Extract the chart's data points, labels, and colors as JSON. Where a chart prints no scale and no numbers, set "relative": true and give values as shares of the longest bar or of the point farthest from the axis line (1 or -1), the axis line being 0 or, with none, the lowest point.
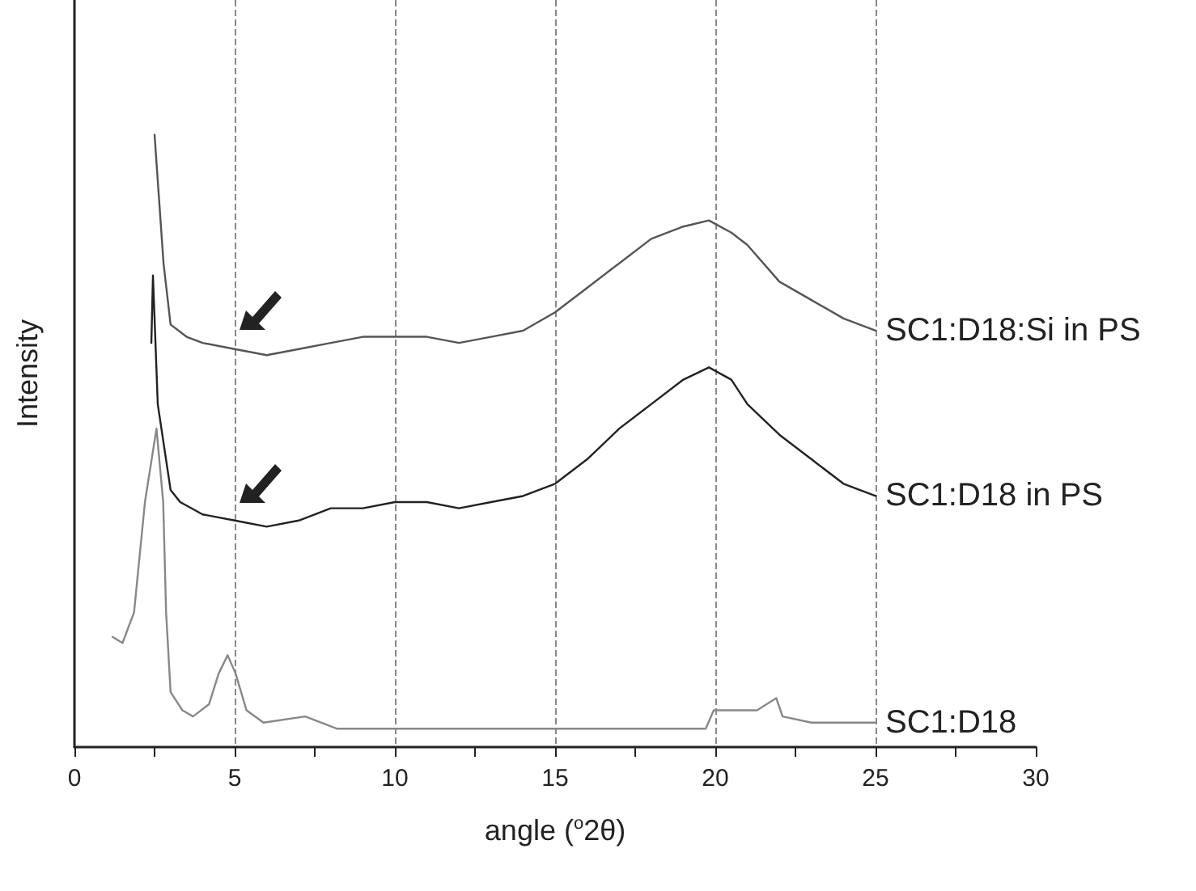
{
  "chart_data": {
    "type": "line",
    "relative": true,
    "xlabel": "angle ($^{o}$2θ)",
    "ylabel": "Intensity",
    "xlim": [
      0,
      30
    ],
    "xticks": [
      0,
      {
        "value": 2.5,
        "label": null
      },
      5,
      {
        "value": 7.5,
        "label": null
      },
      10,
      {
        "value": 12.5,
        "label": null
      },
      15,
      {
        "value": 17.5,
        "label": null
      },
      20,
      {
        "value": 22.5,
        "label": null
      },
      25,
      {
        "value": 27.5,
        "label": null
      },
      30
    ],
    "grid": "x",
    "legend": false,
    "marker": "none",
    "line_style": "solid",
    "series": [
      {
        "name": "SC1:D18:Si in PS",
        "color": "#555555",
        "x": [
          2.5,
          2.78,
          3.0,
          3.5,
          4,
          5,
          6,
          7,
          8,
          9,
          10,
          11,
          12,
          13,
          14,
          15,
          16,
          17,
          18,
          19,
          19.8,
          20.5,
          21,
          22,
          23,
          24,
          25
        ],
        "values": [
          1,
          0.79,
          0.69,
          0.67,
          0.66,
          0.65,
          0.64,
          0.65,
          0.66,
          0.67,
          0.67,
          0.67,
          0.66,
          0.67,
          0.68,
          0.71,
          0.75,
          0.79,
          0.83,
          0.85,
          0.86,
          0.84,
          0.82,
          0.76,
          0.73,
          0.7,
          0.68
        ]
      },
      {
        "name": "SC1:D18 in PS",
        "color": "#222222",
        "x": [
          2.4,
          2.45,
          2.6,
          3.0,
          3.3,
          4,
          5,
          6,
          7,
          8,
          9,
          10,
          11,
          12,
          13,
          14,
          15,
          16,
          17,
          18,
          19,
          19.8,
          20.5,
          21,
          22,
          23,
          24,
          25
        ],
        "values": [
          0.66,
          0.77,
          0.56,
          0.42,
          0.4,
          0.38,
          0.37,
          0.36,
          0.37,
          0.39,
          0.39,
          0.4,
          0.4,
          0.39,
          0.4,
          0.41,
          0.43,
          0.47,
          0.52,
          0.56,
          0.6,
          0.62,
          0.6,
          0.56,
          0.51,
          0.47,
          0.43,
          0.41
        ]
      },
      {
        "name": "SC1:D18",
        "color": "#888888",
        "x": [
          1.19,
          1.5,
          1.86,
          2.2,
          2.56,
          2.77,
          2.86,
          3.0,
          3.37,
          3.7,
          4.2,
          4.5,
          4.78,
          5.03,
          5.37,
          5.9,
          7.2,
          8.2,
          10,
          15,
          19.7,
          19.95,
          21.3,
          21.9,
          22.1,
          23,
          25
        ],
        "values": [
          0.18,
          0.17,
          0.22,
          0.4,
          0.52,
          0.4,
          0.22,
          0.09,
          0.06,
          0.05,
          0.07,
          0.12,
          0.15,
          0.12,
          0.06,
          0.04,
          0.05,
          0.03,
          0.03,
          0.03,
          0.03,
          0.06,
          0.06,
          0.08,
          0.05,
          0.04,
          0.04
        ]
      }
    ]
  }
}
